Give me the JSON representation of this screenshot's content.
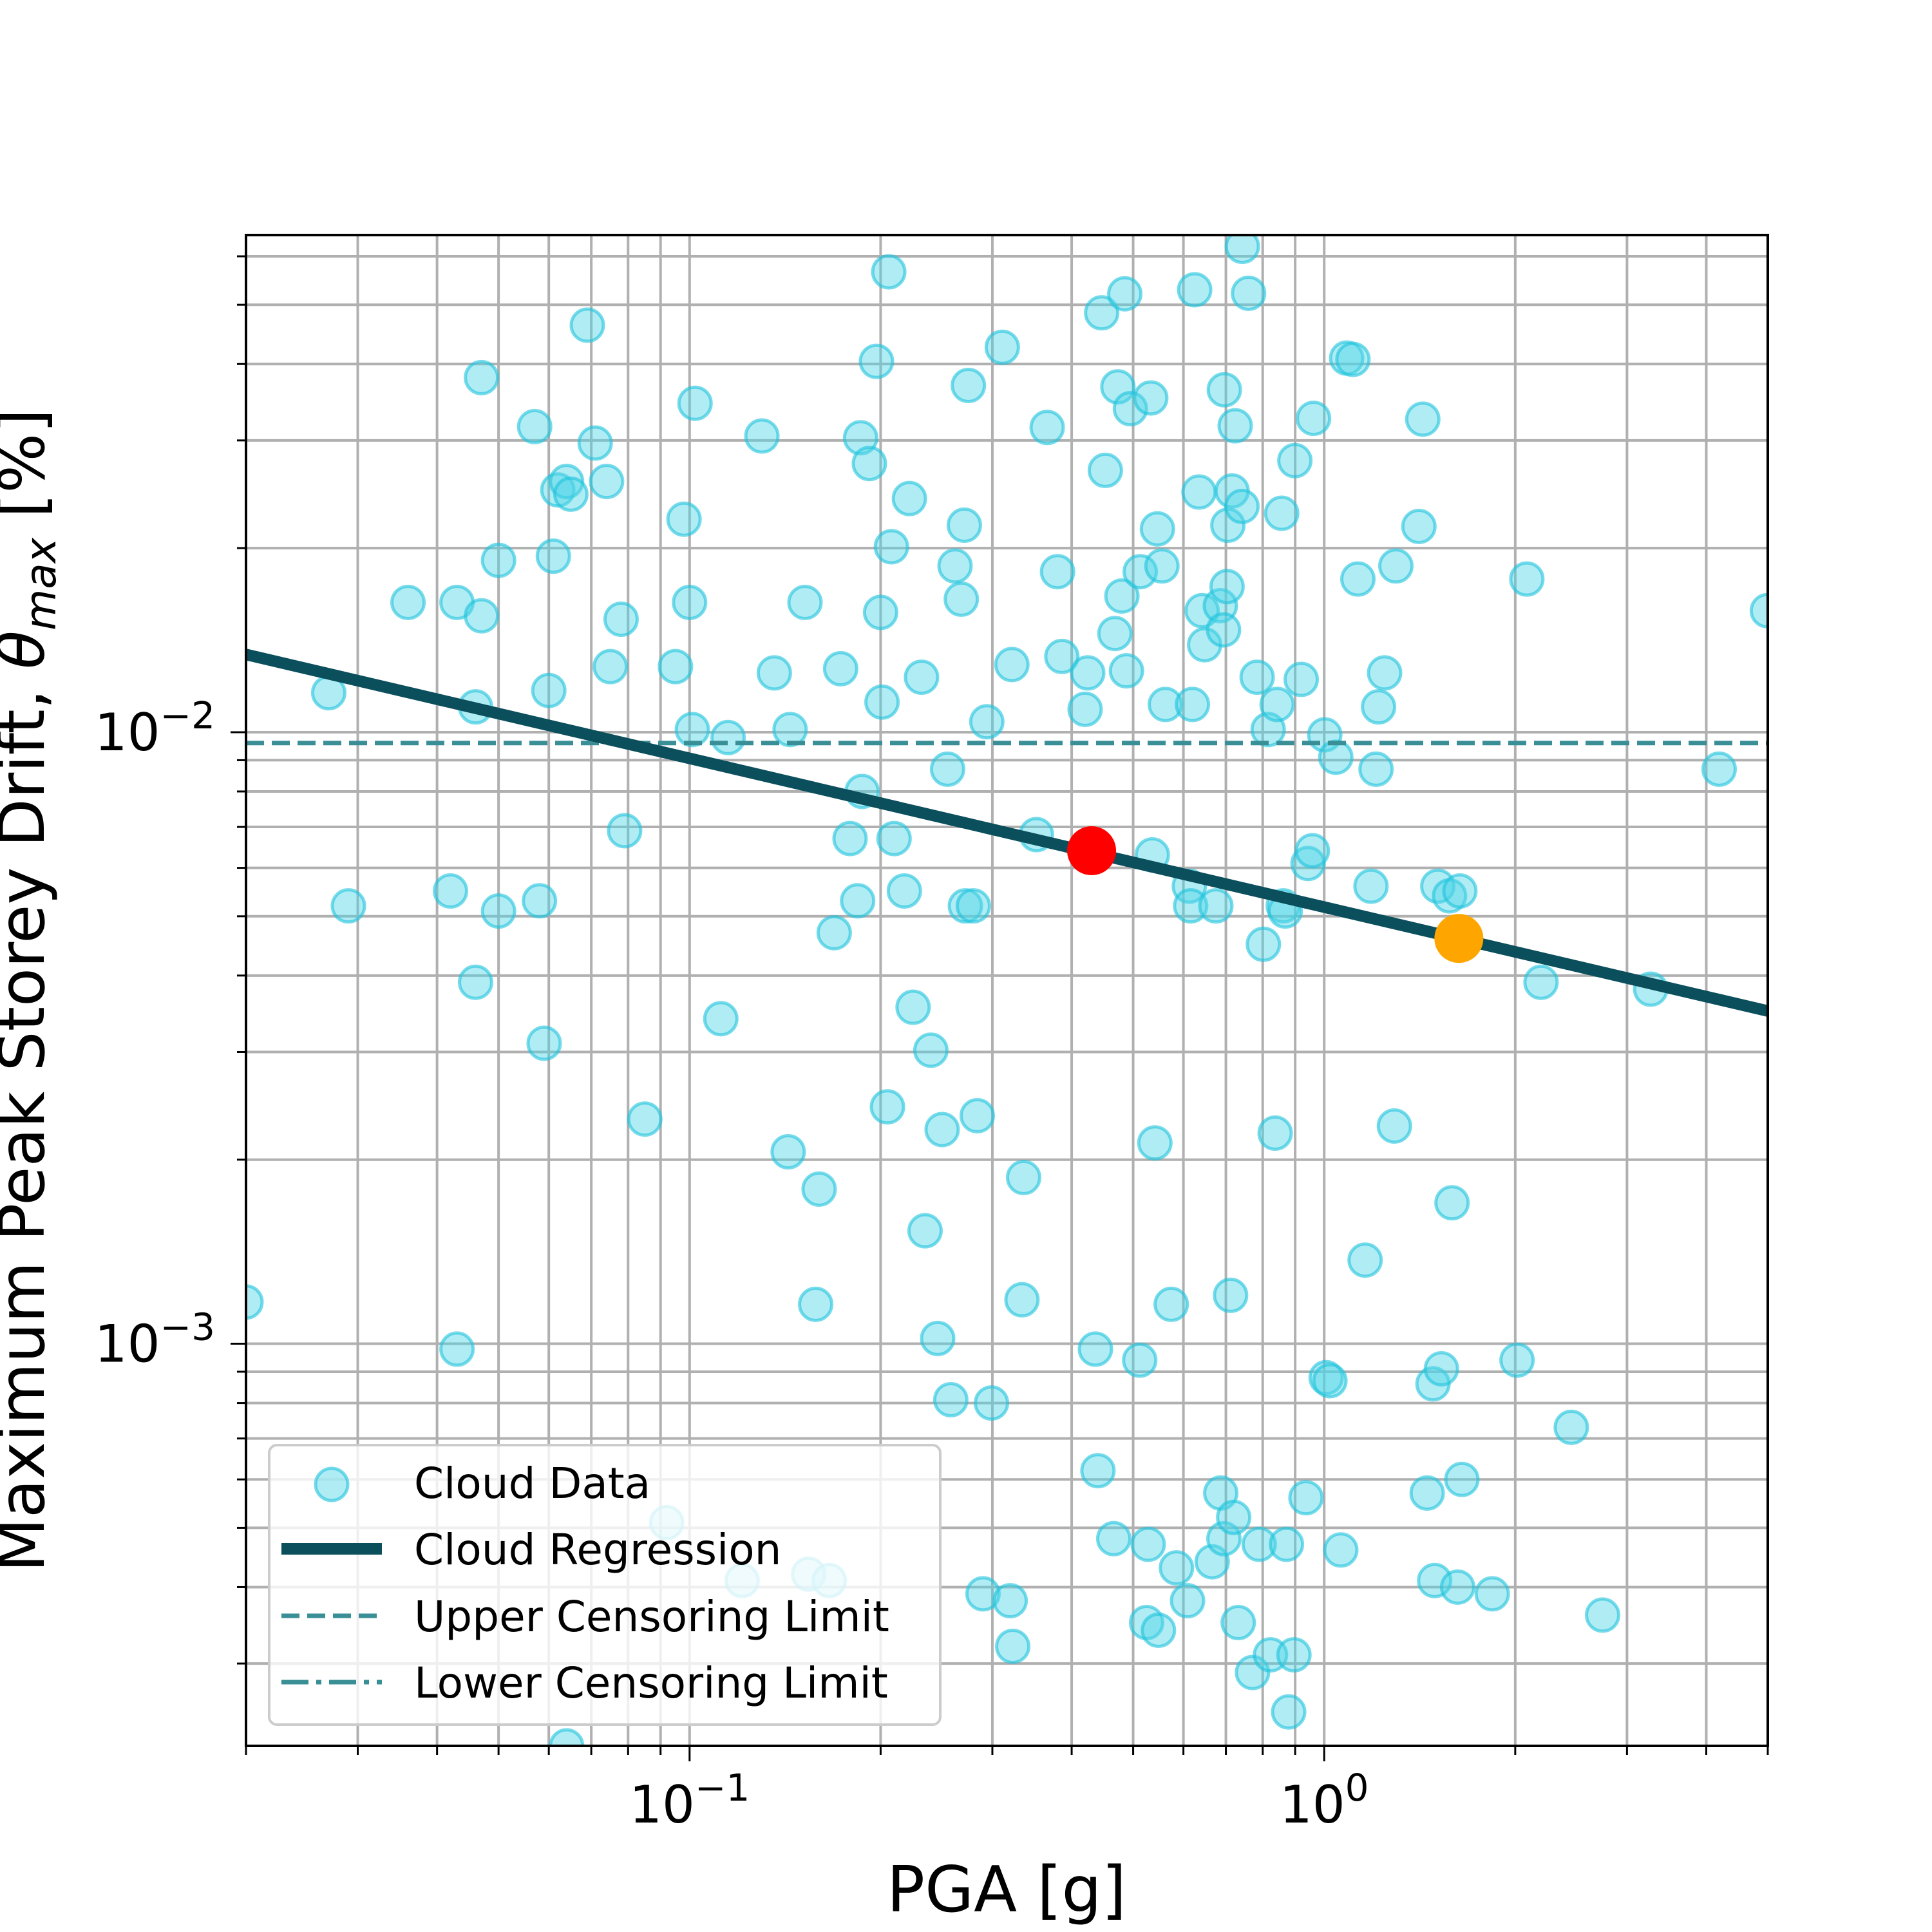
{
  "chart_data": {
    "type": "scatter",
    "title": "",
    "xlabel": "PGA [g]",
    "ylabel_main": "Maximum Peak Storey Drift, ",
    "ylabel_symbol": "θ",
    "ylabel_sub": "max",
    "ylabel_unit": " [%]",
    "x_scale": "log",
    "y_scale": "log",
    "xlim": [
      0.02,
      5.0
    ],
    "ylim": [
      0.00022,
      0.065
    ],
    "grid": true,
    "x_ticks": [
      {
        "value": 0.1,
        "base": "10",
        "exp": "−1"
      },
      {
        "value": 1.0,
        "base": "10",
        "exp": "0"
      }
    ],
    "y_ticks": [
      {
        "value": 0.001,
        "base": "10",
        "exp": "−3"
      },
      {
        "value": 0.01,
        "base": "10",
        "exp": "−2"
      }
    ],
    "legend": {
      "position": "lower-left",
      "entries": [
        "Cloud Data",
        "Cloud Regression",
        "Upper Censoring Limit",
        "Lower Censoring Limit"
      ]
    },
    "colors": {
      "cloud_fill": "#4fd5e6",
      "cloud_edge": "#1ec3dc",
      "regression": "#0b4f5c",
      "censor": "#3a8f96",
      "point_red": "#ff0000",
      "point_orange": "#ffa500",
      "grid": "#b0b0b0"
    },
    "upper_censoring_limit": 0.0096,
    "regression_line": [
      {
        "x": 0.02,
        "y": 0.0134
      },
      {
        "x": 5.0,
        "y": 0.0035
      }
    ],
    "highlight_points": [
      {
        "x": 0.43,
        "y": 0.0064,
        "color": "red"
      },
      {
        "x": 1.63,
        "y": 0.0046,
        "color": "orange"
      }
    ],
    "series": [
      {
        "name": "Cloud Data",
        "points": [
          [
            0.02,
            0.00117
          ],
          [
            0.027,
            0.0116
          ],
          [
            0.029,
            0.0052
          ],
          [
            0.036,
            0.0163
          ],
          [
            0.042,
            0.0055
          ],
          [
            0.043,
            0.00098
          ],
          [
            0.043,
            0.0163
          ],
          [
            0.046,
            0.0039
          ],
          [
            0.046,
            0.011
          ],
          [
            0.047,
            0.038
          ],
          [
            0.047,
            0.0155
          ],
          [
            0.05,
            0.0051
          ],
          [
            0.05,
            0.0191
          ],
          [
            0.057,
            0.0316
          ],
          [
            0.058,
            0.0053
          ],
          [
            0.059,
            0.0031
          ],
          [
            0.06,
            0.0117
          ],
          [
            0.061,
            0.0194
          ],
          [
            0.062,
            0.0249
          ],
          [
            0.064,
            0.0257
          ],
          [
            0.064,
            0.00022
          ],
          [
            0.065,
            0.0245
          ],
          [
            0.069,
            0.0463
          ],
          [
            0.071,
            0.0297
          ],
          [
            0.074,
            0.0257
          ],
          [
            0.075,
            0.0128
          ],
          [
            0.078,
            0.0153
          ],
          [
            0.079,
            0.0069
          ],
          [
            0.085,
            0.00233
          ],
          [
            0.092,
            0.00051
          ],
          [
            0.095,
            0.0128
          ],
          [
            0.098,
            0.0223
          ],
          [
            0.1,
            0.0163
          ],
          [
            0.101,
            0.0101
          ],
          [
            0.102,
            0.0345
          ],
          [
            0.112,
            0.0034
          ],
          [
            0.115,
            0.0098
          ],
          [
            0.121,
            0.00041
          ],
          [
            0.13,
            0.0305
          ],
          [
            0.136,
            0.0125
          ],
          [
            0.143,
            0.00206
          ],
          [
            0.144,
            0.0101
          ],
          [
            0.152,
            0.0163
          ],
          [
            0.154,
            0.00042
          ],
          [
            0.158,
            0.00116
          ],
          [
            0.16,
            0.00179
          ],
          [
            0.166,
            0.00041
          ],
          [
            0.169,
            0.0047
          ],
          [
            0.173,
            0.0127
          ],
          [
            0.179,
            0.0067
          ],
          [
            0.184,
            0.0053
          ],
          [
            0.186,
            0.0303
          ],
          [
            0.187,
            0.008
          ],
          [
            0.192,
            0.0275
          ],
          [
            0.197,
            0.0404
          ],
          [
            0.2,
            0.0157
          ],
          [
            0.201,
            0.0112
          ],
          [
            0.205,
            0.00244
          ],
          [
            0.206,
            0.0566
          ],
          [
            0.208,
            0.0201
          ],
          [
            0.21,
            0.0067
          ],
          [
            0.218,
            0.0055
          ],
          [
            0.222,
            0.0241
          ],
          [
            0.225,
            0.00355
          ],
          [
            0.232,
            0.0123
          ],
          [
            0.235,
            0.00153
          ],
          [
            0.24,
            0.00302
          ],
          [
            0.246,
            0.00102
          ],
          [
            0.25,
            0.00224
          ],
          [
            0.255,
            0.0087
          ],
          [
            0.258,
            0.00081
          ],
          [
            0.262,
            0.0187
          ],
          [
            0.268,
            0.0165
          ],
          [
            0.271,
            0.0218
          ],
          [
            0.272,
            0.0052
          ],
          [
            0.275,
            0.0369
          ],
          [
            0.28,
            0.0052
          ],
          [
            0.284,
            0.00236
          ],
          [
            0.29,
            0.00039
          ],
          [
            0.294,
            0.0104
          ],
          [
            0.299,
            0.0008
          ],
          [
            0.311,
            0.0426
          ],
          [
            0.32,
            0.00038
          ],
          [
            0.322,
            0.0129
          ],
          [
            0.323,
            0.00032
          ],
          [
            0.334,
            0.00118
          ],
          [
            0.336,
            0.00187
          ],
          [
            0.352,
            0.0068
          ],
          [
            0.366,
            0.0315
          ],
          [
            0.38,
            0.0183
          ],
          [
            0.386,
            0.0133
          ],
          [
            0.42,
            0.0109
          ],
          [
            0.424,
            0.0125
          ],
          [
            0.436,
            0.00098
          ],
          [
            0.44,
            0.00062
          ],
          [
            0.446,
            0.0485
          ],
          [
            0.452,
            0.0268
          ],
          [
            0.466,
            0.00048
          ],
          [
            0.468,
            0.0145
          ],
          [
            0.473,
            0.0367
          ],
          [
            0.48,
            0.0167
          ],
          [
            0.485,
            0.0521
          ],
          [
            0.488,
            0.0126
          ],
          [
            0.495,
            0.0338
          ],
          [
            0.512,
            0.00094
          ],
          [
            0.513,
            0.0183
          ],
          [
            0.525,
            0.00035
          ],
          [
            0.528,
            0.00047
          ],
          [
            0.533,
            0.0352
          ],
          [
            0.536,
            0.0063
          ],
          [
            0.541,
            0.00213
          ],
          [
            0.546,
            0.0215
          ],
          [
            0.548,
            0.00034
          ],
          [
            0.555,
            0.0187
          ],
          [
            0.562,
            0.0111
          ],
          [
            0.574,
            0.00116
          ],
          [
            0.585,
            0.00043
          ],
          [
            0.609,
            0.00038
          ],
          [
            0.613,
            0.0056
          ],
          [
            0.616,
            0.0052
          ],
          [
            0.62,
            0.0111
          ],
          [
            0.625,
            0.0529
          ],
          [
            0.635,
            0.0247
          ],
          [
            0.642,
            0.0158
          ],
          [
            0.648,
            0.0139
          ],
          [
            0.666,
            0.00044
          ],
          [
            0.675,
            0.0052
          ],
          [
            0.686,
            0.0161
          ],
          [
            0.687,
            0.00057
          ],
          [
            0.694,
            0.0147
          ],
          [
            0.695,
            0.00048
          ],
          [
            0.696,
            0.0363
          ],
          [
            0.703,
            0.0173
          ],
          [
            0.705,
            0.0218
          ],
          [
            0.712,
            0.0012
          ],
          [
            0.716,
            0.0248
          ],
          [
            0.72,
            0.00052
          ],
          [
            0.724,
            0.0317
          ],
          [
            0.732,
            0.00035
          ],
          [
            0.742,
            0.0234
          ],
          [
            0.743,
            0.0623
          ],
          [
            0.76,
            0.0522
          ],
          [
            0.771,
            0.00029
          ],
          [
            0.784,
            0.0123
          ],
          [
            0.79,
            0.00047
          ],
          [
            0.802,
            0.0045
          ],
          [
            0.816,
            0.0101
          ],
          [
            0.823,
            0.00031
          ],
          [
            0.837,
            0.00221
          ],
          [
            0.843,
            0.0111
          ],
          [
            0.857,
            0.0228
          ],
          [
            0.862,
            0.0052
          ],
          [
            0.868,
            0.0051
          ],
          [
            0.872,
            0.00047
          ],
          [
            0.879,
            0.00025
          ],
          [
            0.896,
            0.00031
          ],
          [
            0.899,
            0.0278
          ],
          [
            0.92,
            0.0122
          ],
          [
            0.936,
            0.00056
          ],
          [
            0.943,
            0.0061
          ],
          [
            0.958,
            0.0064
          ],
          [
            0.962,
            0.0326
          ],
          [
            1.002,
            0.0099
          ],
          [
            1.007,
            0.00088
          ],
          [
            1.021,
            0.00087
          ],
          [
            1.043,
            0.0091
          ],
          [
            1.062,
            0.00046
          ],
          [
            1.085,
            0.0409
          ],
          [
            1.11,
            0.0407
          ],
          [
            1.13,
            0.0178
          ],
          [
            1.16,
            0.00137
          ],
          [
            1.185,
            0.0056
          ],
          [
            1.207,
            0.0087
          ],
          [
            1.218,
            0.011
          ],
          [
            1.245,
            0.0125
          ],
          [
            1.29,
            0.00227
          ],
          [
            1.297,
            0.0187
          ],
          [
            1.41,
            0.0217
          ],
          [
            1.43,
            0.0325
          ],
          [
            1.453,
            0.00057
          ],
          [
            1.484,
            0.00086
          ],
          [
            1.493,
            0.00041
          ],
          [
            1.51,
            0.0056
          ],
          [
            1.53,
            0.00091
          ],
          [
            1.576,
            0.0054
          ],
          [
            1.59,
            0.0017
          ],
          [
            1.623,
            0.0004
          ],
          [
            1.636,
            0.0055
          ],
          [
            1.648,
            0.0006
          ],
          [
            1.84,
            0.00039
          ],
          [
            2.013,
            0.00094
          ],
          [
            2.086,
            0.0178
          ],
          [
            2.196,
            0.0039
          ],
          [
            2.451,
            0.00073
          ],
          [
            2.746,
            0.00036
          ],
          [
            3.269,
            0.0038
          ],
          [
            4.191,
            0.0087
          ],
          [
            4.992,
            0.0158
          ]
        ]
      },
      {
        "name": "Cloud Regression"
      },
      {
        "name": "Upper Censoring Limit"
      },
      {
        "name": "Lower Censoring Limit"
      }
    ]
  }
}
